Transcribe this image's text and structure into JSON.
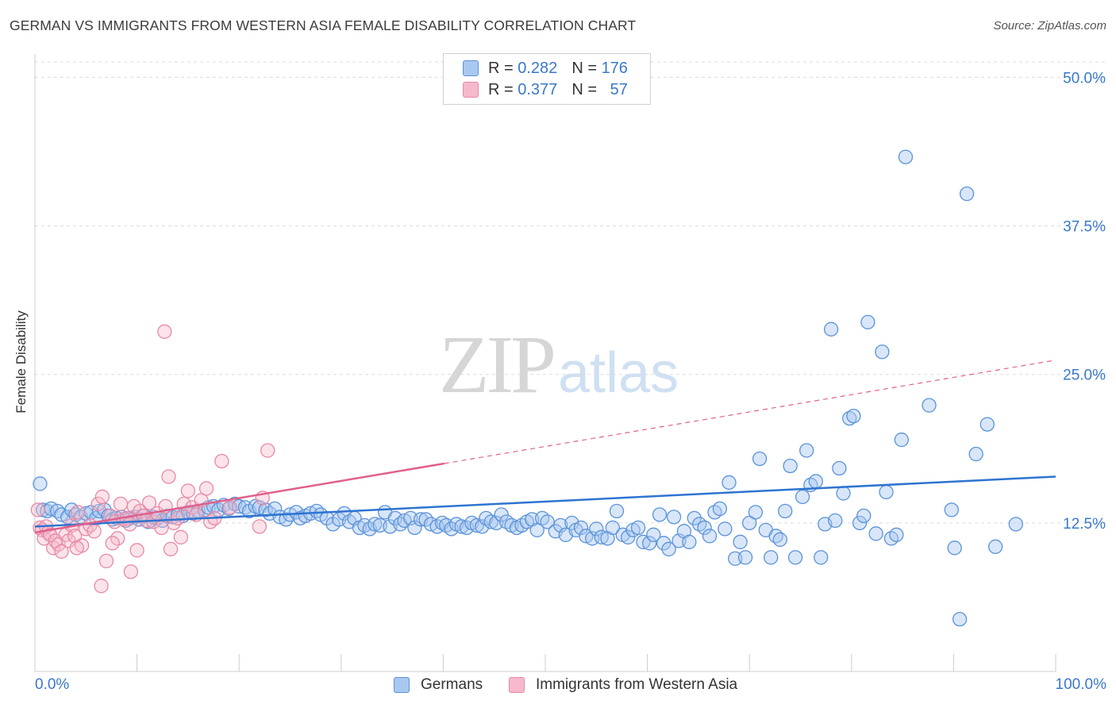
{
  "header": {
    "title": "GERMAN VS IMMIGRANTS FROM WESTERN ASIA FEMALE DISABILITY CORRELATION CHART",
    "source": "Source: ZipAtlas.com"
  },
  "watermark": {
    "part1": "ZIP",
    "part2": "atlas"
  },
  "legend": {
    "rows": [
      {
        "r_label": "R =",
        "r_value": "0.282",
        "n_label": "N =",
        "n_value": "176",
        "color": "#a9c8f0"
      },
      {
        "r_label": "R =",
        "r_value": "0.377",
        "n_label": "N =",
        "n_value": "57",
        "color": "#f6b9cb"
      }
    ]
  },
  "bottom_legend": {
    "germans": "Germans",
    "immigrants": "Immigrants from Western Asia"
  },
  "x_tick_labels": {
    "left": "0.0%",
    "right": "100.0%"
  },
  "colors": {
    "blue_fill": "#a9c8f0",
    "blue_stroke": "#5b93d8",
    "blue_line": "#2e74d0",
    "pink_fill": "#f6b9cb",
    "pink_stroke": "#e889a6",
    "pink_line": "#e0608c",
    "tick_text": "#3a78c9",
    "grid": "#dcdcdc"
  },
  "chart_data": {
    "type": "scatter",
    "title": "GERMAN VS IMMIGRANTS FROM WESTERN ASIA FEMALE DISABILITY CORRELATION CHART",
    "xlabel": "",
    "ylabel": "Female Disability",
    "xlim": [
      0,
      100
    ],
    "ylim": [
      0,
      52.5
    ],
    "y_ticks": [
      12.5,
      25.0,
      37.5,
      50.0
    ],
    "y_tick_labels": [
      "12.5%",
      "25.0%",
      "37.5%",
      "50.0%"
    ],
    "x_tick_labels": [
      "0.0%",
      "100.0%"
    ],
    "grid": "horizontal dashed",
    "legend_position": "top-center",
    "series": [
      {
        "name": "Germans",
        "r": 0.282,
        "n": 176,
        "trend": {
          "x": [
            0,
            100
          ],
          "y": [
            12.2,
            16.4
          ],
          "style": "solid"
        },
        "points": [
          [
            0.5,
            15.8
          ],
          [
            0.8,
            13.6
          ],
          [
            1.2,
            13.5
          ],
          [
            1.6,
            13.7
          ],
          [
            2.2,
            13.5
          ],
          [
            2.6,
            13.2
          ],
          [
            3.2,
            13.0
          ],
          [
            3.6,
            13.6
          ],
          [
            4.0,
            13.2
          ],
          [
            4.5,
            13.0
          ],
          [
            5.0,
            13.3
          ],
          [
            5.5,
            13.4
          ],
          [
            6.0,
            12.9
          ],
          [
            6.3,
            13.5
          ],
          [
            6.8,
            13.6
          ],
          [
            7.2,
            13.1
          ],
          [
            7.6,
            12.8
          ],
          [
            8.0,
            12.9
          ],
          [
            8.5,
            13.0
          ],
          [
            8.9,
            12.7
          ],
          [
            9.3,
            12.9
          ],
          [
            9.8,
            13.0
          ],
          [
            10.2,
            12.8
          ],
          [
            10.7,
            13.1
          ],
          [
            11.1,
            12.6
          ],
          [
            11.6,
            13.0
          ],
          [
            12.0,
            12.9
          ],
          [
            12.5,
            12.7
          ],
          [
            13.0,
            13.1
          ],
          [
            13.5,
            13.0
          ],
          [
            14.0,
            13.2
          ],
          [
            14.5,
            13.1
          ],
          [
            15.0,
            13.4
          ],
          [
            15.5,
            13.3
          ],
          [
            16.0,
            13.5
          ],
          [
            16.6,
            13.6
          ],
          [
            17.0,
            13.8
          ],
          [
            17.5,
            13.9
          ],
          [
            18.0,
            13.6
          ],
          [
            18.5,
            14.0
          ],
          [
            19.0,
            13.7
          ],
          [
            19.6,
            14.1
          ],
          [
            20.0,
            13.9
          ],
          [
            20.6,
            13.8
          ],
          [
            21.0,
            13.5
          ],
          [
            21.6,
            13.9
          ],
          [
            22.0,
            13.8
          ],
          [
            22.6,
            13.6
          ],
          [
            23.0,
            13.3
          ],
          [
            23.5,
            13.7
          ],
          [
            24.0,
            13.0
          ],
          [
            24.6,
            12.8
          ],
          [
            25.0,
            13.2
          ],
          [
            25.6,
            13.4
          ],
          [
            26.0,
            12.9
          ],
          [
            26.5,
            13.1
          ],
          [
            27.0,
            13.3
          ],
          [
            27.6,
            13.5
          ],
          [
            28.0,
            13.2
          ],
          [
            28.6,
            12.9
          ],
          [
            29.2,
            12.4
          ],
          [
            29.8,
            12.8
          ],
          [
            30.3,
            13.3
          ],
          [
            30.8,
            12.6
          ],
          [
            31.3,
            12.9
          ],
          [
            31.8,
            12.1
          ],
          [
            32.3,
            12.3
          ],
          [
            32.8,
            12.0
          ],
          [
            33.3,
            12.4
          ],
          [
            33.8,
            12.3
          ],
          [
            34.3,
            13.4
          ],
          [
            34.8,
            12.2
          ],
          [
            35.3,
            12.9
          ],
          [
            35.8,
            12.4
          ],
          [
            36.2,
            12.7
          ],
          [
            36.8,
            12.9
          ],
          [
            37.2,
            12.1
          ],
          [
            37.8,
            12.8
          ],
          [
            38.3,
            12.8
          ],
          [
            38.8,
            12.4
          ],
          [
            39.4,
            12.2
          ],
          [
            39.9,
            12.5
          ],
          [
            40.3,
            12.3
          ],
          [
            40.8,
            12.0
          ],
          [
            41.3,
            12.4
          ],
          [
            41.8,
            12.2
          ],
          [
            42.3,
            12.1
          ],
          [
            42.8,
            12.5
          ],
          [
            43.3,
            12.3
          ],
          [
            43.8,
            12.2
          ],
          [
            44.2,
            12.9
          ],
          [
            44.7,
            12.6
          ],
          [
            45.2,
            12.5
          ],
          [
            45.7,
            13.2
          ],
          [
            46.2,
            12.6
          ],
          [
            46.7,
            12.3
          ],
          [
            47.2,
            12.1
          ],
          [
            47.7,
            12.3
          ],
          [
            48.2,
            12.6
          ],
          [
            48.7,
            12.8
          ],
          [
            49.2,
            11.9
          ],
          [
            49.7,
            12.9
          ],
          [
            50.2,
            12.6
          ],
          [
            51.0,
            11.8
          ],
          [
            51.5,
            12.3
          ],
          [
            52.0,
            11.5
          ],
          [
            52.6,
            12.5
          ],
          [
            53.0,
            11.9
          ],
          [
            53.5,
            12.1
          ],
          [
            54.0,
            11.4
          ],
          [
            54.6,
            11.2
          ],
          [
            55.0,
            12.0
          ],
          [
            55.5,
            11.3
          ],
          [
            56.1,
            11.2
          ],
          [
            56.6,
            12.1
          ],
          [
            57.0,
            13.5
          ],
          [
            57.6,
            11.5
          ],
          [
            58.1,
            11.3
          ],
          [
            58.6,
            11.9
          ],
          [
            59.1,
            12.1
          ],
          [
            59.6,
            10.9
          ],
          [
            60.2,
            10.8
          ],
          [
            60.6,
            11.5
          ],
          [
            61.2,
            13.2
          ],
          [
            61.6,
            10.8
          ],
          [
            62.1,
            10.3
          ],
          [
            62.6,
            13.0
          ],
          [
            63.1,
            11.0
          ],
          [
            63.6,
            11.8
          ],
          [
            64.1,
            10.9
          ],
          [
            64.6,
            12.9
          ],
          [
            65.1,
            12.4
          ],
          [
            65.6,
            12.1
          ],
          [
            66.1,
            11.4
          ],
          [
            66.6,
            13.4
          ],
          [
            67.1,
            13.7
          ],
          [
            67.6,
            12.0
          ],
          [
            68.0,
            15.9
          ],
          [
            68.6,
            9.5
          ],
          [
            69.1,
            10.9
          ],
          [
            69.6,
            9.6
          ],
          [
            70.0,
            12.5
          ],
          [
            70.6,
            13.4
          ],
          [
            71.0,
            17.9
          ],
          [
            71.6,
            11.9
          ],
          [
            72.1,
            9.6
          ],
          [
            72.6,
            11.4
          ],
          [
            73.0,
            11.1
          ],
          [
            73.5,
            13.5
          ],
          [
            74.0,
            17.3
          ],
          [
            74.5,
            9.6
          ],
          [
            75.2,
            14.7
          ],
          [
            75.6,
            18.6
          ],
          [
            76.0,
            15.7
          ],
          [
            76.5,
            16.0
          ],
          [
            77.0,
            9.6
          ],
          [
            77.4,
            12.4
          ],
          [
            78.0,
            28.8
          ],
          [
            78.4,
            12.7
          ],
          [
            78.8,
            17.1
          ],
          [
            79.2,
            15.0
          ],
          [
            79.8,
            21.3
          ],
          [
            80.2,
            21.5
          ],
          [
            80.8,
            12.5
          ],
          [
            81.2,
            13.1
          ],
          [
            81.6,
            29.4
          ],
          [
            82.4,
            11.6
          ],
          [
            83.0,
            26.9
          ],
          [
            83.4,
            15.1
          ],
          [
            83.9,
            11.2
          ],
          [
            84.4,
            11.5
          ],
          [
            84.9,
            19.5
          ],
          [
            85.3,
            43.3
          ],
          [
            87.6,
            22.4
          ],
          [
            89.8,
            13.6
          ],
          [
            90.1,
            10.4
          ],
          [
            90.6,
            4.4
          ],
          [
            91.3,
            40.2
          ],
          [
            92.2,
            18.3
          ],
          [
            93.3,
            20.8
          ],
          [
            94.1,
            10.5
          ],
          [
            96.1,
            12.4
          ]
        ]
      },
      {
        "name": "Immigrants from Western Asia",
        "r": 0.377,
        "n": 57,
        "trend": {
          "x": [
            0,
            40.1
          ],
          "y": [
            11.7,
            17.5
          ],
          "style": "solid",
          "extended_to": [
            100,
            26.2
          ],
          "extended_style": "dashed"
        },
        "points": [
          [
            0.3,
            13.6
          ],
          [
            0.5,
            12.1
          ],
          [
            0.7,
            11.9
          ],
          [
            0.9,
            11.2
          ],
          [
            1.1,
            12.2
          ],
          [
            1.3,
            11.7
          ],
          [
            1.5,
            11.5
          ],
          [
            1.8,
            10.4
          ],
          [
            2.0,
            11.0
          ],
          [
            2.3,
            10.7
          ],
          [
            2.6,
            10.1
          ],
          [
            3.0,
            11.5
          ],
          [
            3.3,
            11.0
          ],
          [
            3.6,
            12.3
          ],
          [
            3.9,
            11.4
          ],
          [
            4.2,
            13.4
          ],
          [
            4.6,
            10.6
          ],
          [
            5.0,
            12.0
          ],
          [
            5.4,
            12.3
          ],
          [
            5.8,
            11.8
          ],
          [
            6.2,
            14.1
          ],
          [
            6.6,
            14.7
          ],
          [
            7.0,
            9.3
          ],
          [
            7.4,
            13.1
          ],
          [
            7.8,
            12.6
          ],
          [
            8.1,
            11.2
          ],
          [
            8.4,
            14.1
          ],
          [
            8.7,
            12.8
          ],
          [
            9.0,
            12.9
          ],
          [
            9.3,
            12.4
          ],
          [
            9.7,
            13.9
          ],
          [
            10.0,
            10.2
          ],
          [
            10.3,
            13.5
          ],
          [
            10.6,
            13.1
          ],
          [
            10.9,
            12.7
          ],
          [
            11.2,
            14.2
          ],
          [
            11.6,
            12.6
          ],
          [
            12.0,
            13.3
          ],
          [
            12.4,
            12.1
          ],
          [
            12.8,
            13.9
          ],
          [
            13.1,
            16.4
          ],
          [
            13.6,
            12.5
          ],
          [
            14.0,
            12.9
          ],
          [
            14.3,
            11.3
          ],
          [
            14.6,
            14.1
          ],
          [
            15.0,
            15.2
          ],
          [
            15.4,
            13.8
          ],
          [
            15.8,
            13.2
          ],
          [
            16.3,
            14.4
          ],
          [
            16.8,
            15.4
          ],
          [
            17.2,
            12.6
          ],
          [
            17.6,
            12.9
          ],
          [
            18.3,
            17.7
          ],
          [
            19.1,
            13.8
          ],
          [
            22.0,
            12.2
          ],
          [
            22.3,
            14.6
          ],
          [
            22.8,
            18.6
          ]
        ],
        "extra_points": [
          [
            12.7,
            28.6
          ],
          [
            9.4,
            8.4
          ],
          [
            6.5,
            7.2
          ],
          [
            4.1,
            10.4
          ],
          [
            7.6,
            10.8
          ],
          [
            13.3,
            10.3
          ]
        ]
      }
    ]
  }
}
